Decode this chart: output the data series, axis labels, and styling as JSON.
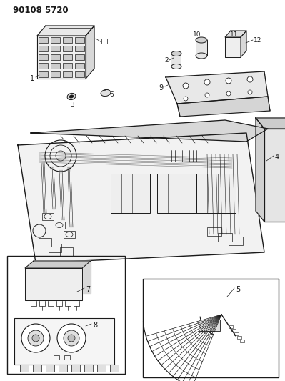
{
  "title": "90108 5720",
  "bg_color": "#ffffff",
  "line_color": "#1a1a1a",
  "fig_width": 3.99,
  "fig_height": 5.33,
  "dpi": 100
}
